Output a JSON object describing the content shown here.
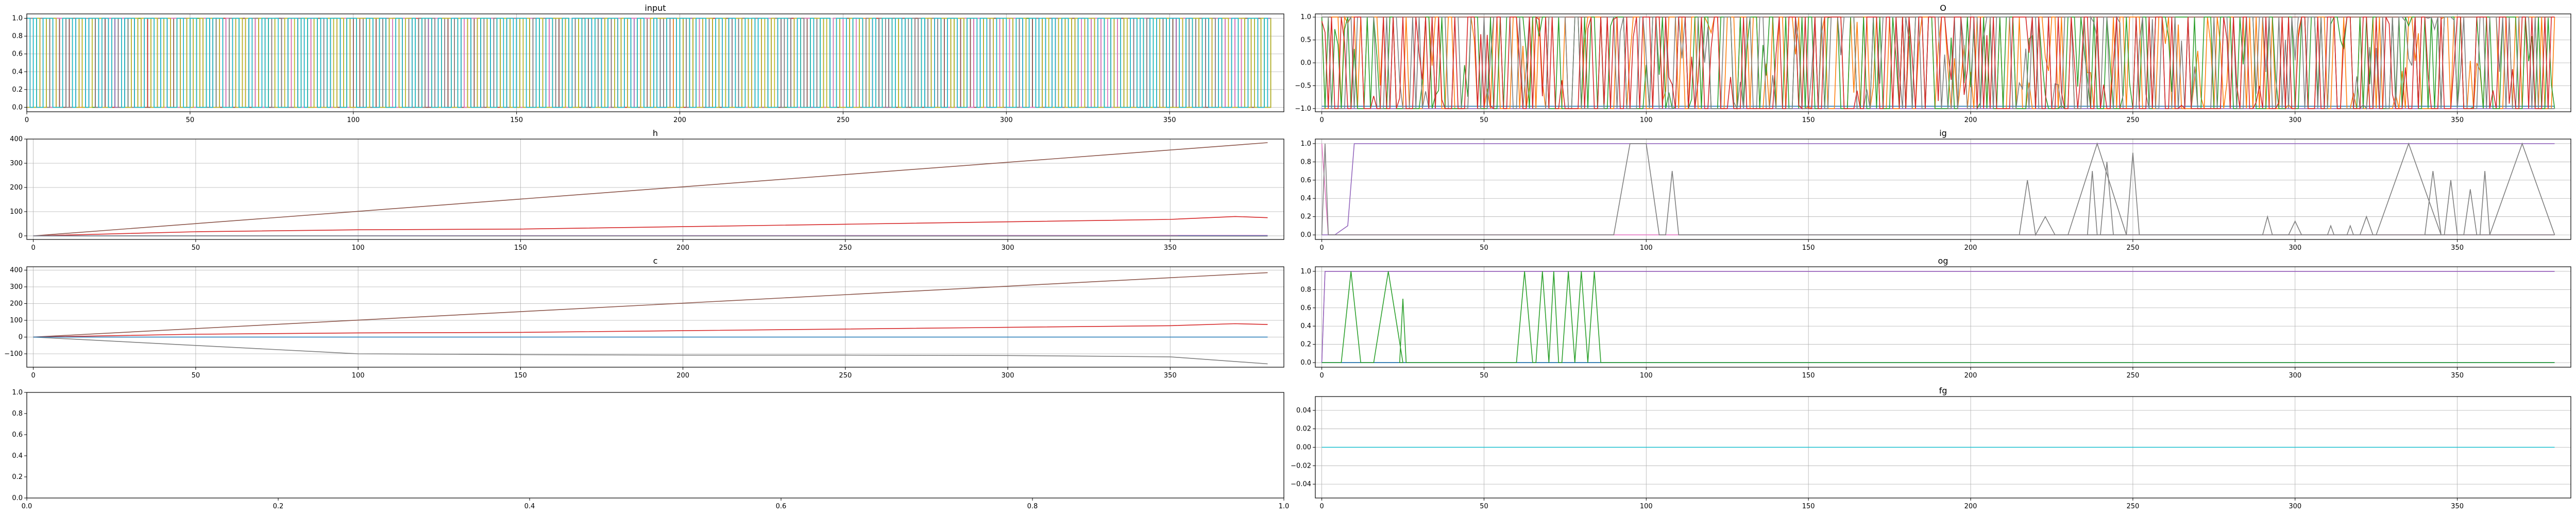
{
  "chart_data": [
    {
      "key": "input",
      "type": "line",
      "title": "input",
      "xlim": [
        0,
        385
      ],
      "ylim": [
        -0.05,
        1.05
      ],
      "grid": true,
      "xticks": [
        0,
        50,
        100,
        150,
        200,
        250,
        300,
        350
      ],
      "yticks": [
        0.0,
        0.2,
        0.4,
        0.6,
        0.8,
        1.0
      ],
      "ytick_labels": [
        "0.0",
        "0.2",
        "0.4",
        "0.6",
        "0.8",
        "1.0"
      ],
      "series_count": 10,
      "series": [
        {
          "values_description": "binary 0/1 square waves toggling every few steps",
          "color": "#1f77b4",
          "pattern": [
            0,
            1
          ]
        },
        {
          "color": "#ff7f0e",
          "pattern": [
            1,
            0
          ]
        },
        {
          "color": "#2ca02c",
          "pattern": [
            0,
            1
          ]
        },
        {
          "color": "#d62728",
          "pattern": [
            1,
            0
          ]
        },
        {
          "color": "#9467bd",
          "pattern": [
            0,
            1
          ]
        },
        {
          "color": "#8c564b",
          "pattern": [
            1,
            0
          ]
        },
        {
          "color": "#e377c2",
          "pattern": [
            0,
            1
          ]
        },
        {
          "color": "#7f7f7f",
          "pattern": [
            1,
            0
          ]
        },
        {
          "color": "#bcbd22",
          "pattern": [
            0,
            1
          ]
        },
        {
          "color": "#17becf",
          "pattern": [
            1,
            0
          ]
        }
      ]
    },
    {
      "key": "O",
      "type": "line",
      "title": "O",
      "xlim": [
        -2,
        385
      ],
      "ylim": [
        -1.07,
        1.07
      ],
      "grid": true,
      "xticks": [
        0,
        50,
        100,
        150,
        200,
        250,
        300,
        350
      ],
      "yticks": [
        -1.0,
        -0.5,
        0.0,
        0.5,
        1.0
      ],
      "ytick_labels": [
        "−1.0",
        "−0.5",
        "0.0",
        "0.5",
        "1.0"
      ],
      "series": [
        {
          "color": "#1f77b4",
          "level": -0.95
        },
        {
          "color": "#8c564b",
          "level": 1.0
        },
        {
          "color": "#9467bd",
          "level": -1.0
        },
        {
          "color": "#ff7f0e",
          "range": [
            -1,
            1
          ]
        },
        {
          "color": "#2ca02c",
          "range": [
            -1,
            1
          ]
        },
        {
          "color": "#7f7f7f",
          "range": [
            -1,
            1
          ]
        },
        {
          "color": "#d62728",
          "range": [
            -1,
            1
          ]
        }
      ]
    },
    {
      "key": "h",
      "type": "line",
      "title": "h",
      "xlim": [
        -2,
        385
      ],
      "ylim": [
        -15,
        400
      ],
      "grid": true,
      "xticks": [
        0,
        50,
        100,
        150,
        200,
        250,
        300,
        350
      ],
      "yticks": [
        0,
        100,
        200,
        300,
        400
      ],
      "ytick_labels": [
        "0",
        "100",
        "200",
        "300",
        "400"
      ],
      "series": [
        {
          "color": "#8c564b",
          "x": [
            0,
            380
          ],
          "y": [
            0,
            385
          ]
        },
        {
          "color": "#d62728",
          "x": [
            0,
            50,
            100,
            150,
            200,
            250,
            300,
            350,
            370,
            380
          ],
          "y": [
            0,
            17,
            25,
            28,
            38,
            48,
            58,
            68,
            80,
            75
          ]
        },
        {
          "color": "#e377c2",
          "x": [
            0,
            380
          ],
          "y": [
            0,
            2
          ]
        },
        {
          "color": "#1f77b4",
          "x": [
            0,
            380
          ],
          "y": [
            0,
            0
          ]
        },
        {
          "color": "#7f7f7f",
          "x": [
            0,
            380
          ],
          "y": [
            0,
            -1
          ]
        }
      ]
    },
    {
      "key": "ig",
      "type": "line",
      "title": "ig",
      "xlim": [
        -2,
        385
      ],
      "ylim": [
        -0.05,
        1.05
      ],
      "grid": true,
      "xticks": [
        0,
        50,
        100,
        150,
        200,
        250,
        300,
        350
      ],
      "yticks": [
        0.0,
        0.2,
        0.4,
        0.6,
        0.8,
        1.0
      ],
      "ytick_labels": [
        "0.0",
        "0.2",
        "0.4",
        "0.6",
        "0.8",
        "1.0"
      ],
      "series": [
        {
          "color": "#e377c2",
          "x": [
            0,
            2,
            4,
            380
          ],
          "y": [
            1,
            0,
            0,
            0
          ]
        },
        {
          "color": "#9467bd",
          "x": [
            0,
            4,
            8,
            10,
            12,
            380
          ],
          "y": [
            0,
            0,
            0.1,
            1,
            1,
            1
          ]
        },
        {
          "color": "#7f7f7f",
          "x": [
            0,
            1,
            2,
            90,
            95,
            100,
            104,
            106,
            108,
            110,
            380
          ],
          "y": [
            0,
            1,
            0,
            0,
            1,
            1,
            0,
            0,
            0.7,
            0,
            0
          ]
        }
      ]
    },
    {
      "key": "c",
      "type": "line",
      "title": "c",
      "xlim": [
        -2,
        385
      ],
      "ylim": [
        -180,
        420
      ],
      "grid": true,
      "xticks": [
        0,
        50,
        100,
        150,
        200,
        250,
        300,
        350
      ],
      "yticks": [
        -100,
        0,
        100,
        200,
        300,
        400
      ],
      "ytick_labels": [
        "−100",
        "0",
        "100",
        "200",
        "300",
        "400"
      ],
      "series": [
        {
          "color": "#8c564b",
          "x": [
            0,
            380
          ],
          "y": [
            0,
            385
          ]
        },
        {
          "color": "#d62728",
          "x": [
            0,
            50,
            100,
            150,
            200,
            250,
            300,
            350,
            370,
            380
          ],
          "y": [
            0,
            17,
            25,
            28,
            38,
            48,
            58,
            68,
            80,
            75
          ]
        },
        {
          "color": "#7f7f7f",
          "x": [
            0,
            50,
            100,
            150,
            200,
            250,
            300,
            350,
            380
          ],
          "y": [
            0,
            -50,
            -100,
            -105,
            -108,
            -108,
            -110,
            -118,
            -160
          ]
        },
        {
          "color": "#1f77b4",
          "x": [
            0,
            380
          ],
          "y": [
            0,
            0
          ]
        }
      ]
    },
    {
      "key": "og",
      "type": "line",
      "title": "og",
      "xlim": [
        -2,
        385
      ],
      "ylim": [
        -0.05,
        1.05
      ],
      "grid": true,
      "xticks": [
        0,
        50,
        100,
        150,
        200,
        250,
        300,
        350
      ],
      "yticks": [
        0.0,
        0.2,
        0.4,
        0.6,
        0.8,
        1.0
      ],
      "ytick_labels": [
        "0.0",
        "0.2",
        "0.4",
        "0.6",
        "0.8",
        "1.0"
      ],
      "series": [
        {
          "color": "#e377c2",
          "x": [
            0,
            1,
            2,
            380
          ],
          "y": [
            0,
            1,
            1,
            1
          ]
        },
        {
          "color": "#9467bd",
          "x": [
            0,
            1,
            2,
            380
          ],
          "y": [
            0,
            1,
            1,
            1
          ]
        },
        {
          "color": "#7f7f7f",
          "x": [
            0,
            380
          ],
          "y": [
            0,
            0
          ]
        },
        {
          "color": "#1f77b4",
          "x": [
            0,
            380
          ],
          "y": [
            0,
            0
          ]
        }
      ]
    },
    {
      "key": "empty",
      "type": "line",
      "title": "",
      "xlim": [
        0,
        1
      ],
      "ylim": [
        0,
        1
      ],
      "grid": false,
      "xticks": [
        0,
        0.2,
        0.4,
        0.6,
        0.8,
        1.0
      ],
      "xtick_labels": [
        "0.0",
        "0.2",
        "0.4",
        "0.6",
        "0.8",
        "1.0"
      ],
      "yticks": [
        0,
        0.2,
        0.4,
        0.6,
        0.8,
        1.0
      ],
      "ytick_labels": [
        "0.0",
        "0.2",
        "0.4",
        "0.6",
        "0.8",
        "1.0"
      ],
      "series": []
    },
    {
      "key": "fg",
      "type": "line",
      "title": "fg",
      "xlim": [
        -2,
        385
      ],
      "ylim": [
        -0.055,
        0.055
      ],
      "grid": true,
      "xticks": [
        0,
        50,
        100,
        150,
        200,
        250,
        300,
        350
      ],
      "yticks": [
        -0.04,
        -0.02,
        0.0,
        0.02,
        0.04
      ],
      "ytick_labels": [
        "−0.04",
        "−0.02",
        "0.00",
        "0.02",
        "0.04"
      ],
      "series": [
        {
          "color": "#17becf",
          "x": [
            0,
            380
          ],
          "y": [
            0,
            0
          ]
        }
      ]
    }
  ]
}
